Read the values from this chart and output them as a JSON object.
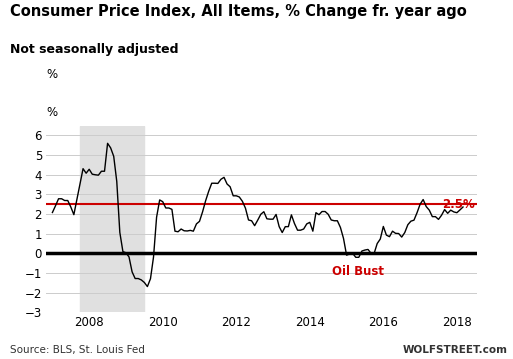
{
  "title": "Consumer Price Index, All Items, % Change fr. year ago",
  "subtitle": "Not seasonally adjusted",
  "ylabel": "%",
  "source": "Source: BLS, St. Louis Fed",
  "watermark": "WOLFSTREET.com",
  "ref_line_value": 2.5,
  "ref_line_label": "2.5%",
  "zero_line_value": 0,
  "oil_bust_label": "Oil Bust",
  "oil_bust_x": 2014.6,
  "oil_bust_y": -0.6,
  "recession_start": 2007.75,
  "recession_end": 2009.5,
  "ylim": [
    -3,
    6.5
  ],
  "yticks": [
    -3,
    -2,
    -1,
    0,
    1,
    2,
    3,
    4,
    5,
    6
  ],
  "xlim_left": 2006.83,
  "xlim_right": 2018.55,
  "background_color": "#ffffff",
  "recession_color": "#e0e0e0",
  "line_color": "#000000",
  "ref_line_color": "#cc0000",
  "zero_line_color": "#000000",
  "annotation_color": "#cc0000",
  "grid_color": "#cccccc",
  "xtick_positions": [
    2008,
    2010,
    2012,
    2014,
    2016,
    2018
  ],
  "dates": [
    2007.0,
    2007.083,
    2007.167,
    2007.25,
    2007.333,
    2007.417,
    2007.5,
    2007.583,
    2007.667,
    2007.75,
    2007.833,
    2007.917,
    2008.0,
    2008.083,
    2008.167,
    2008.25,
    2008.333,
    2008.417,
    2008.5,
    2008.583,
    2008.667,
    2008.75,
    2008.833,
    2008.917,
    2009.0,
    2009.083,
    2009.167,
    2009.25,
    2009.333,
    2009.417,
    2009.5,
    2009.583,
    2009.667,
    2009.75,
    2009.833,
    2009.917,
    2010.0,
    2010.083,
    2010.167,
    2010.25,
    2010.333,
    2010.417,
    2010.5,
    2010.583,
    2010.667,
    2010.75,
    2010.833,
    2010.917,
    2011.0,
    2011.083,
    2011.167,
    2011.25,
    2011.333,
    2011.417,
    2011.5,
    2011.583,
    2011.667,
    2011.75,
    2011.833,
    2011.917,
    2012.0,
    2012.083,
    2012.167,
    2012.25,
    2012.333,
    2012.417,
    2012.5,
    2012.583,
    2012.667,
    2012.75,
    2012.833,
    2012.917,
    2013.0,
    2013.083,
    2013.167,
    2013.25,
    2013.333,
    2013.417,
    2013.5,
    2013.583,
    2013.667,
    2013.75,
    2013.833,
    2013.917,
    2014.0,
    2014.083,
    2014.167,
    2014.25,
    2014.333,
    2014.417,
    2014.5,
    2014.583,
    2014.667,
    2014.75,
    2014.833,
    2014.917,
    2015.0,
    2015.083,
    2015.167,
    2015.25,
    2015.333,
    2015.417,
    2015.5,
    2015.583,
    2015.667,
    2015.75,
    2015.833,
    2015.917,
    2016.0,
    2016.083,
    2016.167,
    2016.25,
    2016.333,
    2016.417,
    2016.5,
    2016.583,
    2016.667,
    2016.75,
    2016.833,
    2016.917,
    2017.0,
    2017.083,
    2017.167,
    2017.25,
    2017.333,
    2017.417,
    2017.5,
    2017.583,
    2017.667,
    2017.75,
    2017.833,
    2017.917,
    2018.0,
    2018.083,
    2018.167
  ],
  "values": [
    2.08,
    2.42,
    2.78,
    2.78,
    2.69,
    2.69,
    2.36,
    1.97,
    2.76,
    3.54,
    4.31,
    4.08,
    4.28,
    4.03,
    4.0,
    3.98,
    4.18,
    4.18,
    5.6,
    5.37,
    4.94,
    3.66,
    1.07,
    0.09,
    0.03,
    -0.18,
    -0.94,
    -1.28,
    -1.28,
    -1.35,
    -1.48,
    -1.69,
    -1.29,
    -0.18,
    1.84,
    2.72,
    2.63,
    2.31,
    2.31,
    2.24,
    1.13,
    1.1,
    1.24,
    1.15,
    1.14,
    1.17,
    1.13,
    1.5,
    1.63,
    2.11,
    2.68,
    3.16,
    3.57,
    3.57,
    3.56,
    3.77,
    3.87,
    3.53,
    3.39,
    2.93,
    2.93,
    2.87,
    2.65,
    2.3,
    1.7,
    1.66,
    1.41,
    1.69,
    1.99,
    2.12,
    1.76,
    1.74,
    1.74,
    1.98,
    1.36,
    1.06,
    1.36,
    1.36,
    1.96,
    1.52,
    1.18,
    1.18,
    1.24,
    1.5,
    1.58,
    1.13,
    2.07,
    1.97,
    2.13,
    2.13,
    1.99,
    1.7,
    1.66,
    1.66,
    1.32,
    0.76,
    -0.09,
    -0.03,
    0.0,
    -0.2,
    -0.2,
    0.12,
    0.17,
    0.2,
    0.0,
    0.0,
    0.5,
    0.73,
    1.37,
    0.93,
    0.85,
    1.13,
    1.02,
    1.01,
    0.83,
    1.06,
    1.46,
    1.64,
    1.69,
    2.07,
    2.5,
    2.74,
    2.38,
    2.2,
    1.87,
    1.87,
    1.73,
    1.94,
    2.23,
    2.04,
    2.2,
    2.11,
    2.07,
    2.21,
    2.36
  ]
}
